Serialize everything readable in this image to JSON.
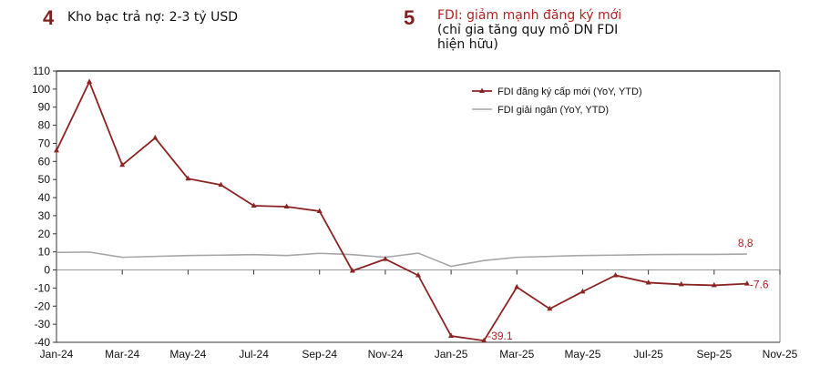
{
  "panel4": {
    "number": "4",
    "title": "Kho bạc trả nợ: 2-3 tỷ USD"
  },
  "panel5": {
    "number": "5",
    "title_highlight": "FDI: giảm mạnh đăng ký mới",
    "title_line2": "(chỉ gia tăng quy mô DN FDI",
    "title_line3": "hiện hữu)"
  },
  "colors": {
    "accent": "#7f1f1f",
    "series_registered": "#8b2323",
    "series_disbursed": "#a6a6a6",
    "label_red": "#b22222"
  },
  "chart_data": {
    "type": "line",
    "title": "FDI: giảm mạnh đăng ký mới (chỉ gia tăng quy mô DN FDI hiện hữu)",
    "xlabel": "",
    "ylabel": "",
    "ylim": [
      -40,
      110
    ],
    "yticks": [
      110,
      100,
      90,
      80,
      70,
      60,
      50,
      40,
      30,
      20,
      10,
      0,
      -10,
      -20,
      -30,
      -40
    ],
    "x": [
      "Jan-24",
      "Feb-24",
      "Mar-24",
      "Apr-24",
      "May-24",
      "Jun-24",
      "Jul-24",
      "Aug-24",
      "Sep-24",
      "Oct-24",
      "Nov-24",
      "Dec-24",
      "Jan-25",
      "Feb-25",
      "Mar-25",
      "Apr-25",
      "May-25",
      "Jun-25",
      "Jul-25",
      "Aug-25",
      "Sep-25",
      "Oct-25"
    ],
    "xtick_labels": [
      "Jan-24",
      "Mar-24",
      "May-24",
      "Jul-24",
      "Sep-24",
      "Nov-24",
      "Jan-25",
      "Mar-25",
      "May-25",
      "Jul-25",
      "Sep-25",
      "Nov-25"
    ],
    "legend_position": "upper right (inside plot)",
    "grid": false,
    "series": [
      {
        "name": "FDI đăng ký cấp mới (YoY, YTD)",
        "marker": "triangle",
        "values": [
          66,
          104,
          58,
          73,
          50.5,
          47,
          35.5,
          35,
          32.5,
          -0.5,
          6,
          -3,
          -36.5,
          -39.1,
          -9.5,
          -21.5,
          -12,
          -3,
          -7,
          -8,
          -8.5,
          -7.6
        ]
      },
      {
        "name": "FDI giải ngân (YoY, YTD)",
        "marker": "none",
        "values": [
          9.7,
          9.9,
          7,
          7.5,
          8,
          8.2,
          8.5,
          8,
          9.2,
          8.5,
          7,
          9.3,
          2,
          5.2,
          7,
          7.5,
          8,
          8.2,
          8.5,
          8.6,
          8.6,
          8.8
        ]
      }
    ],
    "annotations": [
      {
        "text": "-39.1",
        "point": "Feb-25",
        "series": "FDI đăng ký cấp mới (YoY, YTD)"
      },
      {
        "text": "-7.6",
        "point": "Oct-25",
        "series": "FDI đăng ký cấp mới (YoY, YTD)"
      },
      {
        "text": "8,8",
        "point": "Oct-25",
        "series": "FDI giải ngân (YoY, YTD)"
      }
    ]
  }
}
